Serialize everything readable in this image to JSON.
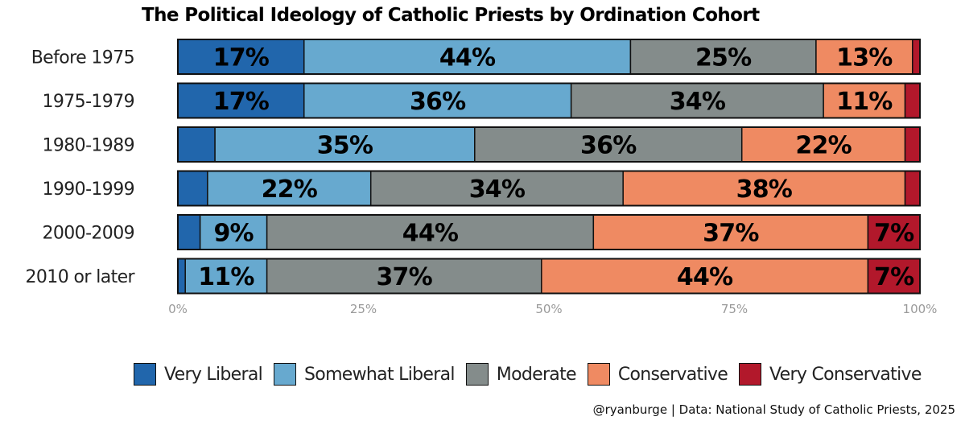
{
  "chart_data": {
    "type": "bar",
    "orientation": "horizontal",
    "stacked": true,
    "title": "The Political Ideology of Catholic Priests by Ordination Cohort",
    "categories": [
      "Before 1975",
      "1975-1979",
      "1980-1989",
      "1990-1999",
      "2000-2009",
      "2010 or later"
    ],
    "series": [
      {
        "name": "Very Liberal",
        "color": "#2166ac",
        "values": [
          17,
          17,
          5,
          4,
          3,
          1
        ]
      },
      {
        "name": "Somewhat Liberal",
        "color": "#67a9cf",
        "values": [
          44,
          36,
          35,
          22,
          9,
          11
        ]
      },
      {
        "name": "Moderate",
        "color": "#848c8b",
        "values": [
          25,
          34,
          36,
          34,
          44,
          37
        ]
      },
      {
        "name": "Conservative",
        "color": "#ef8a62",
        "values": [
          13,
          11,
          22,
          38,
          37,
          44
        ]
      },
      {
        "name": "Very Conservative",
        "color": "#b2182b",
        "values": [
          1,
          2,
          2,
          2,
          7,
          7
        ]
      }
    ],
    "label_min": 7,
    "xlim": [
      0,
      100
    ],
    "x_ticks": [
      "0%",
      "25%",
      "50%",
      "75%",
      "100%"
    ],
    "grid": false,
    "legend_position": "bottom"
  },
  "caption": "@ryanburge | Data: National Study of Catholic Priests, 2025"
}
